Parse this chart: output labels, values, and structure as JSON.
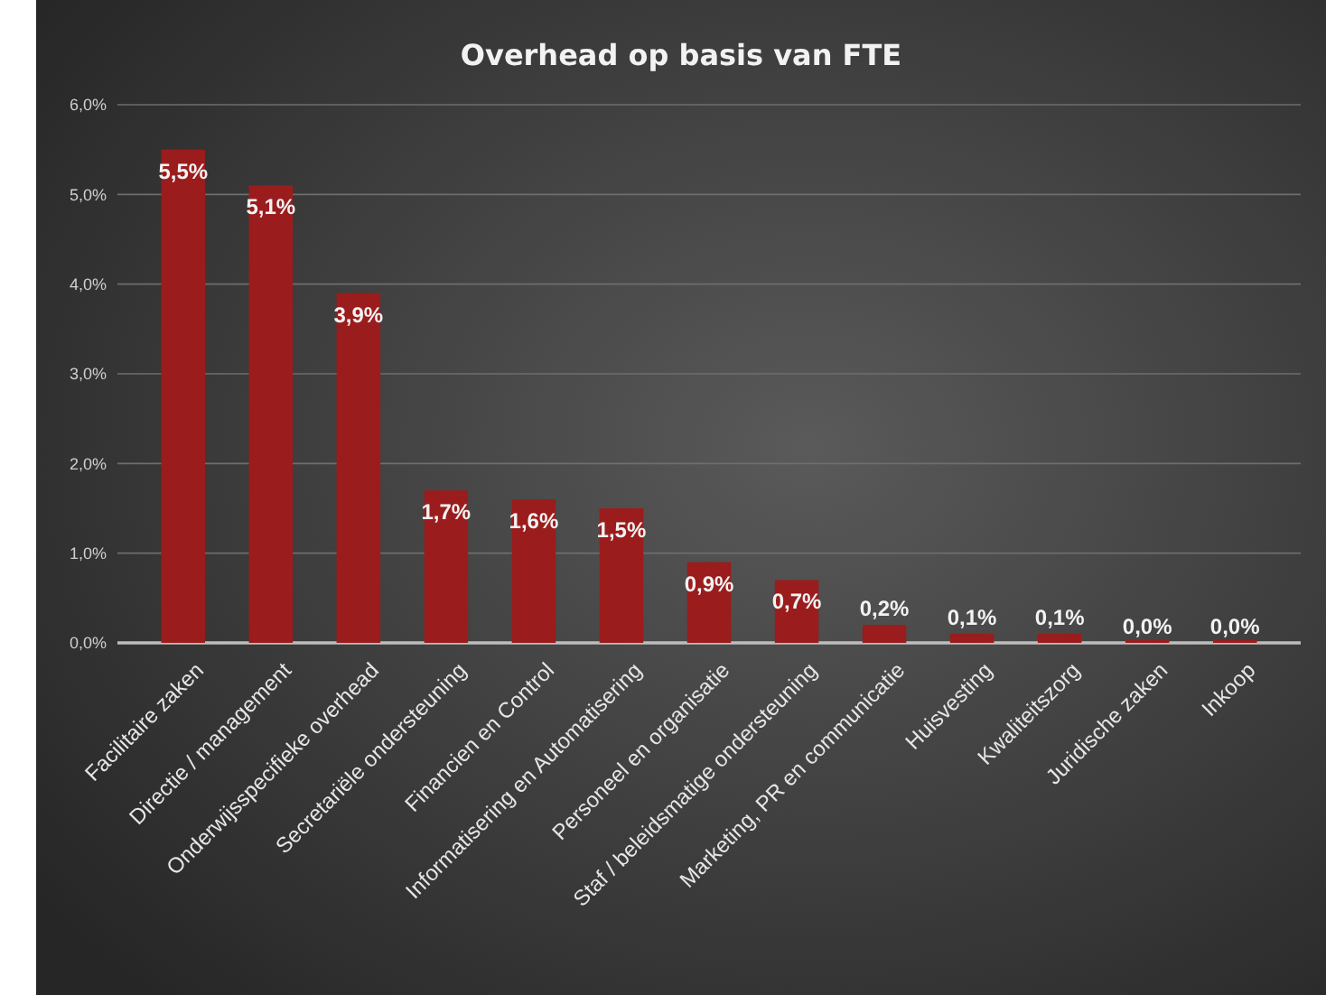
{
  "chart_data": {
    "type": "bar",
    "title": "Overhead op basis van FTE",
    "categories": [
      "Facilitaire zaken",
      "Directie / management",
      "Onderwijsspecifieke overhead",
      "Secretariële ondersteuning",
      "Financien en Control",
      "Informatisering en Automatisering",
      "Personeel en organisatie",
      "Staf / beleidsmatige ondersteuning",
      "Marketing, PR en communicatie",
      "Huisvesting",
      "Kwaliteitszorg",
      "Juridische zaken",
      "Inkoop"
    ],
    "values": [
      5.5,
      5.1,
      3.9,
      1.7,
      1.6,
      1.5,
      0.9,
      0.7,
      0.2,
      0.1,
      0.1,
      0.0,
      0.0
    ],
    "value_labels": [
      "5,5%",
      "5,1%",
      "3,9%",
      "1,7%",
      "1,6%",
      "1,5%",
      "0,9%",
      "0,7%",
      "0,2%",
      "0,1%",
      "0,1%",
      "0,0%",
      "0,0%"
    ],
    "color": "#9b1c1c",
    "ylim": [
      0,
      6
    ],
    "yticks": [
      {
        "value": 0,
        "label": "0,0%"
      },
      {
        "value": 1,
        "label": "1,0%"
      },
      {
        "value": 2,
        "label": "2,0%"
      },
      {
        "value": 3,
        "label": "3,0%"
      },
      {
        "value": 4,
        "label": "4,0%"
      },
      {
        "value": 5,
        "label": "5,0%"
      },
      {
        "value": 6,
        "label": "6,0%"
      }
    ],
    "grid": "y"
  }
}
